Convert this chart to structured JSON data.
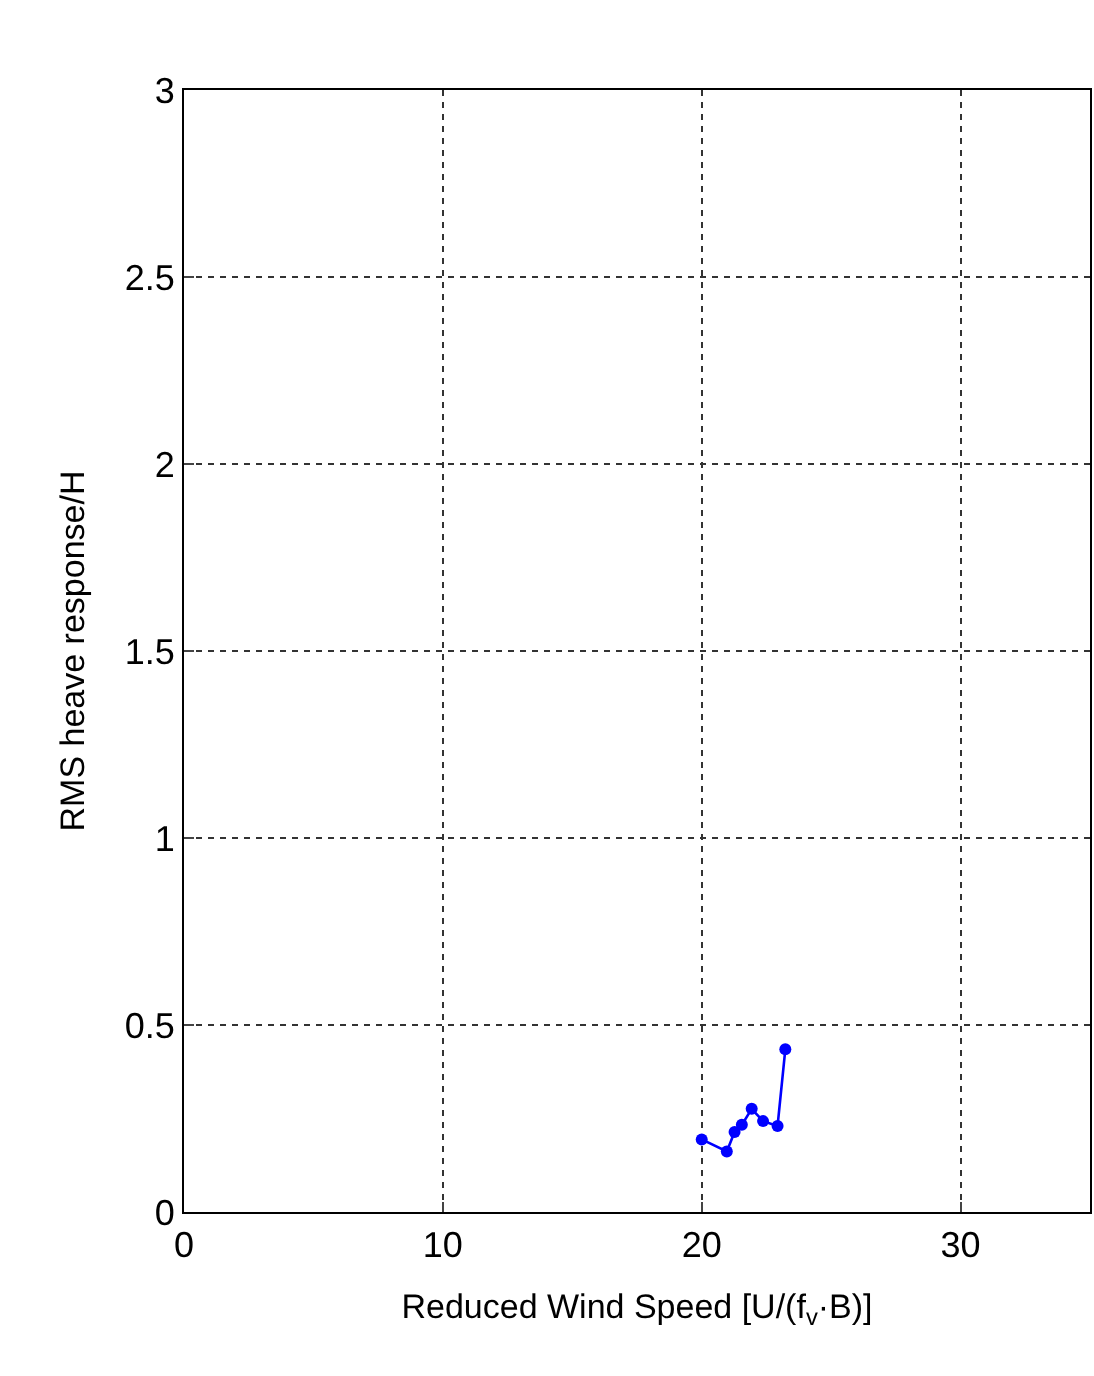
{
  "chart_data": {
    "type": "line",
    "xlabel": "Reduced Wind Speed [U/(f$_{v}$·B)]",
    "ylabel": "RMS heave response/H",
    "series": [
      {
        "color": "#0000ff",
        "x": [
          20.0,
          20.97,
          21.27,
          21.55,
          21.93,
          22.37,
          22.93,
          23.23
        ],
        "values": [
          0.194,
          0.162,
          0.214,
          0.233,
          0.276,
          0.243,
          0.23,
          0.435
        ]
      }
    ],
    "xlim": [
      0,
      35
    ],
    "xticks": [
      0,
      10,
      20,
      30
    ],
    "ylim": [
      0,
      3
    ],
    "yticks": [
      0,
      0.5,
      1,
      1.5,
      2,
      2.5,
      3
    ],
    "grid": true,
    "marker": "circle",
    "line_style": "solid",
    "legend": false
  }
}
